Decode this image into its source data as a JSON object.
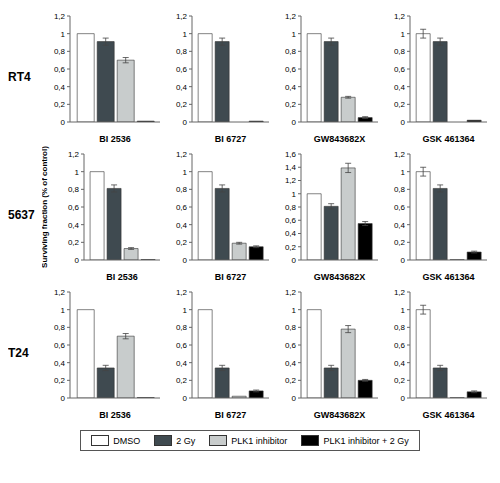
{
  "rows": [
    "RT4",
    "5637",
    "T24"
  ],
  "chart_data": [
    {
      "type": "bar",
      "row": "RT4",
      "xlabel": "BI 2536",
      "categories": [
        null
      ],
      "ylim": [
        0,
        1.2
      ],
      "yticks": [
        0,
        {
          "value": 0.2,
          "label": "0,2"
        },
        {
          "value": 0.4,
          "label": "0,4"
        },
        {
          "value": 0.6,
          "label": "0,6"
        },
        {
          "value": 0.8,
          "label": "0,8"
        },
        1,
        {
          "value": 1.2,
          "label": "1,2"
        }
      ],
      "series": [
        {
          "name": "DMSO",
          "color": "#ffffff",
          "values": [
            1
          ],
          "errors": [
            0
          ]
        },
        {
          "name": "2 Gy",
          "color": "#3f4a50",
          "values": [
            0.91
          ],
          "errors": [
            0.04
          ]
        },
        {
          "name": "PLK1 inhibitor",
          "color": "#c8cccc",
          "values": [
            0.7
          ],
          "errors": [
            0.03
          ]
        },
        {
          "name": "PLK1 inhibitor + 2 Gy",
          "color": "#000000",
          "values": [
            0.01
          ],
          "errors": [
            0
          ]
        }
      ]
    },
    {
      "type": "bar",
      "row": "RT4",
      "xlabel": "BI 6727",
      "categories": [
        null
      ],
      "ylim": [
        0,
        1.2
      ],
      "yticks": [
        0,
        {
          "value": 0.2,
          "label": "0,2"
        },
        {
          "value": 0.4,
          "label": "0,4"
        },
        {
          "value": 0.6,
          "label": "0,6"
        },
        {
          "value": 0.8,
          "label": "0,8"
        },
        1,
        {
          "value": 1.2,
          "label": "1,2"
        }
      ],
      "series": [
        {
          "name": "DMSO",
          "color": "#ffffff",
          "values": [
            1
          ],
          "errors": [
            0
          ]
        },
        {
          "name": "2 Gy",
          "color": "#3f4a50",
          "values": [
            0.91
          ],
          "errors": [
            0.04
          ]
        },
        {
          "name": "PLK1 inhibitor",
          "color": "#c8cccc",
          "values": [
            0
          ],
          "errors": [
            0
          ]
        },
        {
          "name": "PLK1 inhibitor + 2 Gy",
          "color": "#000000",
          "values": [
            0.01
          ],
          "errors": [
            0
          ]
        }
      ]
    },
    {
      "type": "bar",
      "row": "RT4",
      "xlabel": "GW843682X",
      "categories": [
        null
      ],
      "ylim": [
        0,
        1.2
      ],
      "yticks": [
        0,
        {
          "value": 0.2,
          "label": "0,2"
        },
        {
          "value": 0.4,
          "label": "0,4"
        },
        {
          "value": 0.6,
          "label": "0,6"
        },
        {
          "value": 0.8,
          "label": "0,8"
        },
        1,
        {
          "value": 1.2,
          "label": "1,2"
        }
      ],
      "series": [
        {
          "name": "DMSO",
          "color": "#ffffff",
          "values": [
            1
          ],
          "errors": [
            0
          ]
        },
        {
          "name": "2 Gy",
          "color": "#3f4a50",
          "values": [
            0.91
          ],
          "errors": [
            0.04
          ]
        },
        {
          "name": "PLK1 inhibitor",
          "color": "#c8cccc",
          "values": [
            0.28
          ],
          "errors": [
            0.01
          ]
        },
        {
          "name": "PLK1 inhibitor + 2 Gy",
          "color": "#000000",
          "values": [
            0.05
          ],
          "errors": [
            0.01
          ]
        }
      ]
    },
    {
      "type": "bar",
      "row": "RT4",
      "xlabel": "GSK 461364",
      "categories": [
        null
      ],
      "ylim": [
        0,
        1.2
      ],
      "yticks": [
        0,
        {
          "value": 0.2,
          "label": "0,2"
        },
        {
          "value": 0.4,
          "label": "0,4"
        },
        {
          "value": 0.6,
          "label": "0,6"
        },
        {
          "value": 0.8,
          "label": "0,8"
        },
        1,
        {
          "value": 1.2,
          "label": "1,2"
        }
      ],
      "series": [
        {
          "name": "DMSO",
          "color": "#ffffff",
          "values": [
            1
          ],
          "errors": [
            0.05
          ]
        },
        {
          "name": "2 Gy",
          "color": "#3f4a50",
          "values": [
            0.91
          ],
          "errors": [
            0.04
          ]
        },
        {
          "name": "PLK1 inhibitor",
          "color": "#c8cccc",
          "values": [
            0
          ],
          "errors": [
            0
          ]
        },
        {
          "name": "PLK1 inhibitor + 2 Gy",
          "color": "#000000",
          "values": [
            0.02
          ],
          "errors": [
            0
          ]
        }
      ]
    },
    {
      "type": "bar",
      "row": "5637",
      "xlabel": "BI 2536",
      "ylabel": "Surviving fraction (% of control)",
      "categories": [
        null
      ],
      "ylim": [
        0,
        1.2
      ],
      "yticks": [
        0,
        {
          "value": 0.2,
          "label": "0,2"
        },
        {
          "value": 0.4,
          "label": "0,4"
        },
        {
          "value": 0.6,
          "label": "0,6"
        },
        {
          "value": 0.8,
          "label": "0,8"
        },
        1,
        {
          "value": 1.2,
          "label": "1,2"
        }
      ],
      "series": [
        {
          "name": "DMSO",
          "color": "#ffffff",
          "values": [
            1
          ],
          "errors": [
            0
          ]
        },
        {
          "name": "2 Gy",
          "color": "#3f4a50",
          "values": [
            0.81
          ],
          "errors": [
            0.04
          ]
        },
        {
          "name": "PLK1 inhibitor",
          "color": "#c8cccc",
          "values": [
            0.13
          ],
          "errors": [
            0.01
          ]
        },
        {
          "name": "PLK1 inhibitor + 2 Gy",
          "color": "#000000",
          "values": [
            0.005
          ],
          "errors": [
            0
          ]
        }
      ]
    },
    {
      "type": "bar",
      "row": "5637",
      "xlabel": "BI 6727",
      "categories": [
        null
      ],
      "ylim": [
        0,
        1.2
      ],
      "yticks": [
        0,
        {
          "value": 0.2,
          "label": "0,2"
        },
        {
          "value": 0.4,
          "label": "0,4"
        },
        {
          "value": 0.6,
          "label": "0,6"
        },
        {
          "value": 0.8,
          "label": "0,8"
        },
        1,
        {
          "value": 1.2,
          "label": "1,2"
        }
      ],
      "series": [
        {
          "name": "DMSO",
          "color": "#ffffff",
          "values": [
            1
          ],
          "errors": [
            0
          ]
        },
        {
          "name": "2 Gy",
          "color": "#3f4a50",
          "values": [
            0.81
          ],
          "errors": [
            0.04
          ]
        },
        {
          "name": "PLK1 inhibitor",
          "color": "#c8cccc",
          "values": [
            0.19
          ],
          "errors": [
            0.01
          ]
        },
        {
          "name": "PLK1 inhibitor + 2 Gy",
          "color": "#000000",
          "values": [
            0.15
          ],
          "errors": [
            0.01
          ]
        }
      ]
    },
    {
      "type": "bar",
      "row": "5637",
      "xlabel": "GW843682X",
      "categories": [
        null
      ],
      "ylim": [
        0,
        1.6
      ],
      "yticks": [
        0,
        {
          "value": 0.2,
          "label": "0,2"
        },
        {
          "value": 0.4,
          "label": "0,4"
        },
        {
          "value": 0.6,
          "label": "0,6"
        },
        {
          "value": 0.8,
          "label": "0,8"
        },
        1,
        {
          "value": 1.2,
          "label": "1,2"
        },
        {
          "value": 1.4,
          "label": "1,4"
        },
        {
          "value": 1.6,
          "label": "1,6"
        }
      ],
      "series": [
        {
          "name": "DMSO",
          "color": "#ffffff",
          "values": [
            1
          ],
          "errors": [
            0
          ]
        },
        {
          "name": "2 Gy",
          "color": "#3f4a50",
          "values": [
            0.81
          ],
          "errors": [
            0.04
          ]
        },
        {
          "name": "PLK1 inhibitor",
          "color": "#c8cccc",
          "values": [
            1.39
          ],
          "errors": [
            0.07
          ]
        },
        {
          "name": "PLK1 inhibitor + 2 Gy",
          "color": "#000000",
          "values": [
            0.55
          ],
          "errors": [
            0.03
          ]
        }
      ]
    },
    {
      "type": "bar",
      "row": "5637",
      "xlabel": "GSK 461364",
      "categories": [
        null
      ],
      "ylim": [
        0,
        1.2
      ],
      "yticks": [
        0,
        {
          "value": 0.2,
          "label": "0,2"
        },
        {
          "value": 0.4,
          "label": "0,4"
        },
        {
          "value": 0.6,
          "label": "0,6"
        },
        {
          "value": 0.8,
          "label": "0,8"
        },
        1,
        {
          "value": 1.2,
          "label": "1,2"
        }
      ],
      "series": [
        {
          "name": "DMSO",
          "color": "#ffffff",
          "values": [
            1
          ],
          "errors": [
            0.05
          ]
        },
        {
          "name": "2 Gy",
          "color": "#3f4a50",
          "values": [
            0.81
          ],
          "errors": [
            0.04
          ]
        },
        {
          "name": "PLK1 inhibitor",
          "color": "#c8cccc",
          "values": [
            0.005
          ],
          "errors": [
            0
          ]
        },
        {
          "name": "PLK1 inhibitor + 2 Gy",
          "color": "#000000",
          "values": [
            0.09
          ],
          "errors": [
            0.01
          ]
        }
      ]
    },
    {
      "type": "bar",
      "row": "T24",
      "xlabel": "BI 2536",
      "categories": [
        null
      ],
      "ylim": [
        0,
        1.2
      ],
      "yticks": [
        0,
        {
          "value": 0.2,
          "label": "0,2"
        },
        {
          "value": 0.4,
          "label": "0,4"
        },
        {
          "value": 0.6,
          "label": "0,6"
        },
        {
          "value": 0.8,
          "label": "0,8"
        },
        1,
        {
          "value": 1.2,
          "label": "1,2"
        }
      ],
      "series": [
        {
          "name": "DMSO",
          "color": "#ffffff",
          "values": [
            1
          ],
          "errors": [
            0
          ]
        },
        {
          "name": "2 Gy",
          "color": "#3f4a50",
          "values": [
            0.34
          ],
          "errors": [
            0.03
          ]
        },
        {
          "name": "PLK1 inhibitor",
          "color": "#c8cccc",
          "values": [
            0.7
          ],
          "errors": [
            0.03
          ]
        },
        {
          "name": "PLK1 inhibitor + 2 Gy",
          "color": "#000000",
          "values": [
            0.005
          ],
          "errors": [
            0
          ]
        }
      ]
    },
    {
      "type": "bar",
      "row": "T24",
      "xlabel": "BI 6727",
      "categories": [
        null
      ],
      "ylim": [
        0,
        1.2
      ],
      "yticks": [
        0,
        {
          "value": 0.2,
          "label": "0,2"
        },
        {
          "value": 0.4,
          "label": "0,4"
        },
        {
          "value": 0.6,
          "label": "0,6"
        },
        {
          "value": 0.8,
          "label": "0,8"
        },
        1,
        {
          "value": 1.2,
          "label": "1,2"
        }
      ],
      "series": [
        {
          "name": "DMSO",
          "color": "#ffffff",
          "values": [
            1
          ],
          "errors": [
            0
          ]
        },
        {
          "name": "2 Gy",
          "color": "#3f4a50",
          "values": [
            0.34
          ],
          "errors": [
            0.03
          ]
        },
        {
          "name": "PLK1 inhibitor",
          "color": "#c8cccc",
          "values": [
            0.02
          ],
          "errors": [
            0
          ]
        },
        {
          "name": "PLK1 inhibitor + 2 Gy",
          "color": "#000000",
          "values": [
            0.08
          ],
          "errors": [
            0.01
          ]
        }
      ]
    },
    {
      "type": "bar",
      "row": "T24",
      "xlabel": "GW843682X",
      "categories": [
        null
      ],
      "ylim": [
        0,
        1.2
      ],
      "yticks": [
        0,
        {
          "value": 0.2,
          "label": "0,2"
        },
        {
          "value": 0.4,
          "label": "0,4"
        },
        {
          "value": 0.6,
          "label": "0,6"
        },
        {
          "value": 0.8,
          "label": "0,8"
        },
        1,
        {
          "value": 1.2,
          "label": "1,2"
        }
      ],
      "series": [
        {
          "name": "DMSO",
          "color": "#ffffff",
          "values": [
            1
          ],
          "errors": [
            0
          ]
        },
        {
          "name": "2 Gy",
          "color": "#3f4a50",
          "values": [
            0.34
          ],
          "errors": [
            0.03
          ]
        },
        {
          "name": "PLK1 inhibitor",
          "color": "#c8cccc",
          "values": [
            0.78
          ],
          "errors": [
            0.04
          ]
        },
        {
          "name": "PLK1 inhibitor + 2 Gy",
          "color": "#000000",
          "values": [
            0.2
          ],
          "errors": [
            0.01
          ]
        }
      ]
    },
    {
      "type": "bar",
      "row": "T24",
      "xlabel": "GSK 461364",
      "categories": [
        null
      ],
      "ylim": [
        0,
        1.2
      ],
      "yticks": [
        0,
        {
          "value": 0.2,
          "label": "0,2"
        },
        {
          "value": 0.4,
          "label": "0,4"
        },
        {
          "value": 0.6,
          "label": "0,6"
        },
        {
          "value": 0.8,
          "label": "0,8"
        },
        1,
        {
          "value": 1.2,
          "label": "1,2"
        }
      ],
      "series": [
        {
          "name": "DMSO",
          "color": "#ffffff",
          "values": [
            1
          ],
          "errors": [
            0.05
          ]
        },
        {
          "name": "2 Gy",
          "color": "#3f4a50",
          "values": [
            0.34
          ],
          "errors": [
            0.03
          ]
        },
        {
          "name": "PLK1 inhibitor",
          "color": "#c8cccc",
          "values": [
            0.005
          ],
          "errors": [
            0
          ]
        },
        {
          "name": "PLK1 inhibitor + 2 Gy",
          "color": "#000000",
          "values": [
            0.07
          ],
          "errors": [
            0.01
          ]
        }
      ]
    }
  ]
}
